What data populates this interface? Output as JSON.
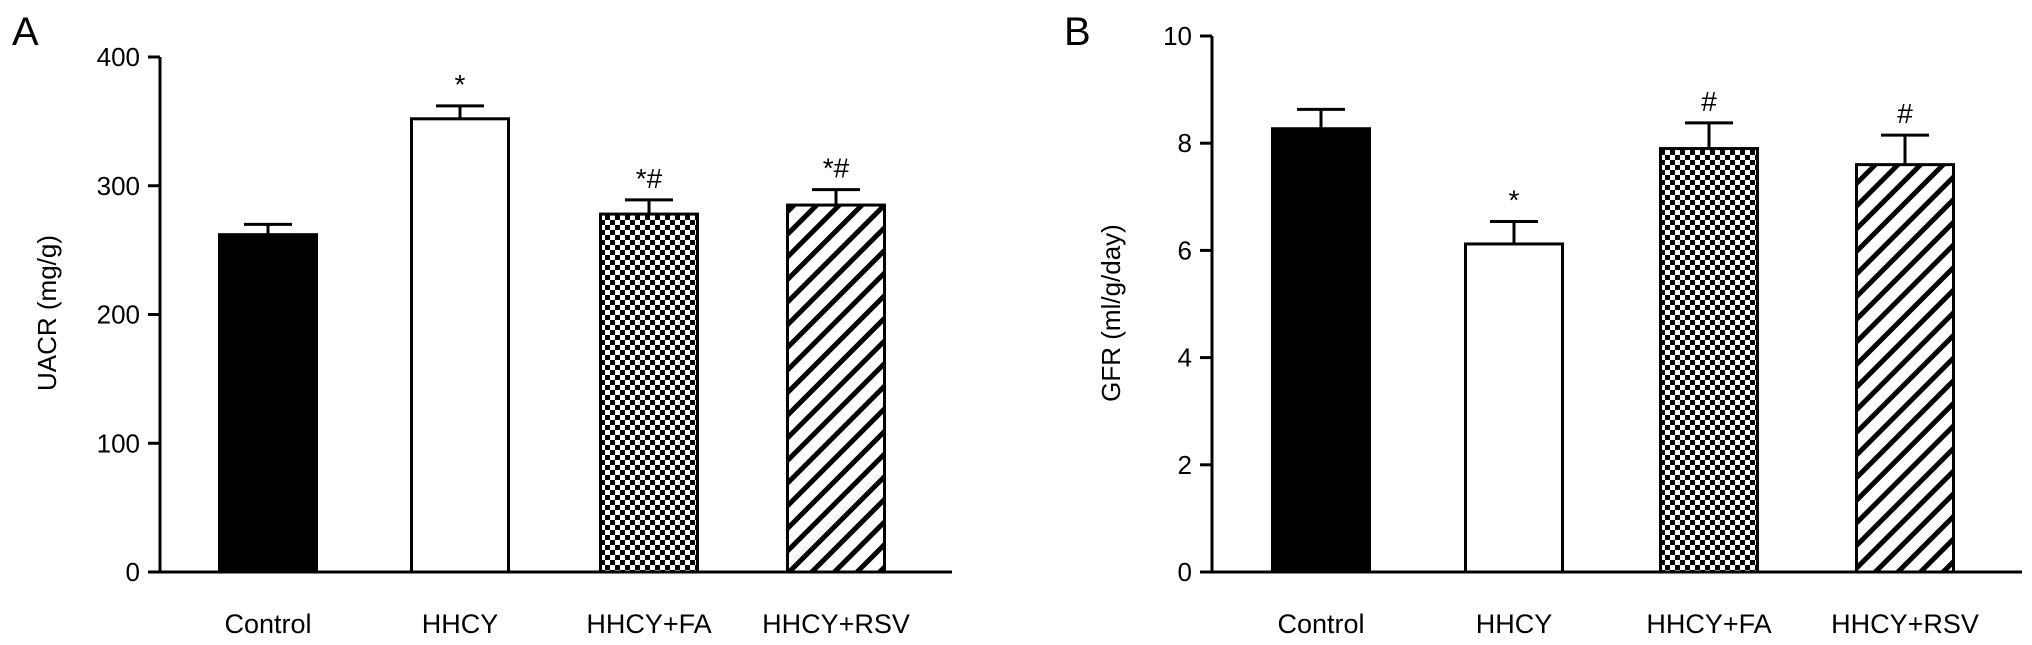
{
  "chart_data": [
    {
      "panel_label": "A",
      "type": "bar",
      "ylabel": "UACR (mg/g)",
      "ylim": [
        0,
        400
      ],
      "yticks": [
        "0",
        "100",
        "200",
        "300",
        "400"
      ],
      "categories": [
        "Control",
        "HHCY",
        "HHCY+FA",
        "HHCY+RSV"
      ],
      "values": [
        262,
        352,
        278,
        285
      ],
      "errors": [
        8,
        10,
        11,
        12
      ],
      "patterns": [
        "solid-black",
        "white",
        "checker",
        "diagonal-hatch"
      ],
      "annotations": [
        "",
        "*",
        "*#",
        "*#"
      ]
    },
    {
      "panel_label": "B",
      "type": "bar",
      "ylabel": "GFR (ml/g/day)",
      "ylim": [
        0,
        10
      ],
      "yticks": [
        "0",
        "2",
        "4",
        "6",
        "8",
        "10"
      ],
      "categories": [
        "Control",
        "HHCY",
        "HHCY+FA",
        "HHCY+RSV"
      ],
      "values": [
        8.27,
        6.12,
        7.9,
        7.6
      ],
      "errors": [
        0.36,
        0.42,
        0.48,
        0.55
      ],
      "patterns": [
        "solid-black",
        "white",
        "checker",
        "diagonal-hatch"
      ],
      "annotations": [
        "",
        "*",
        "#",
        "#"
      ]
    }
  ]
}
